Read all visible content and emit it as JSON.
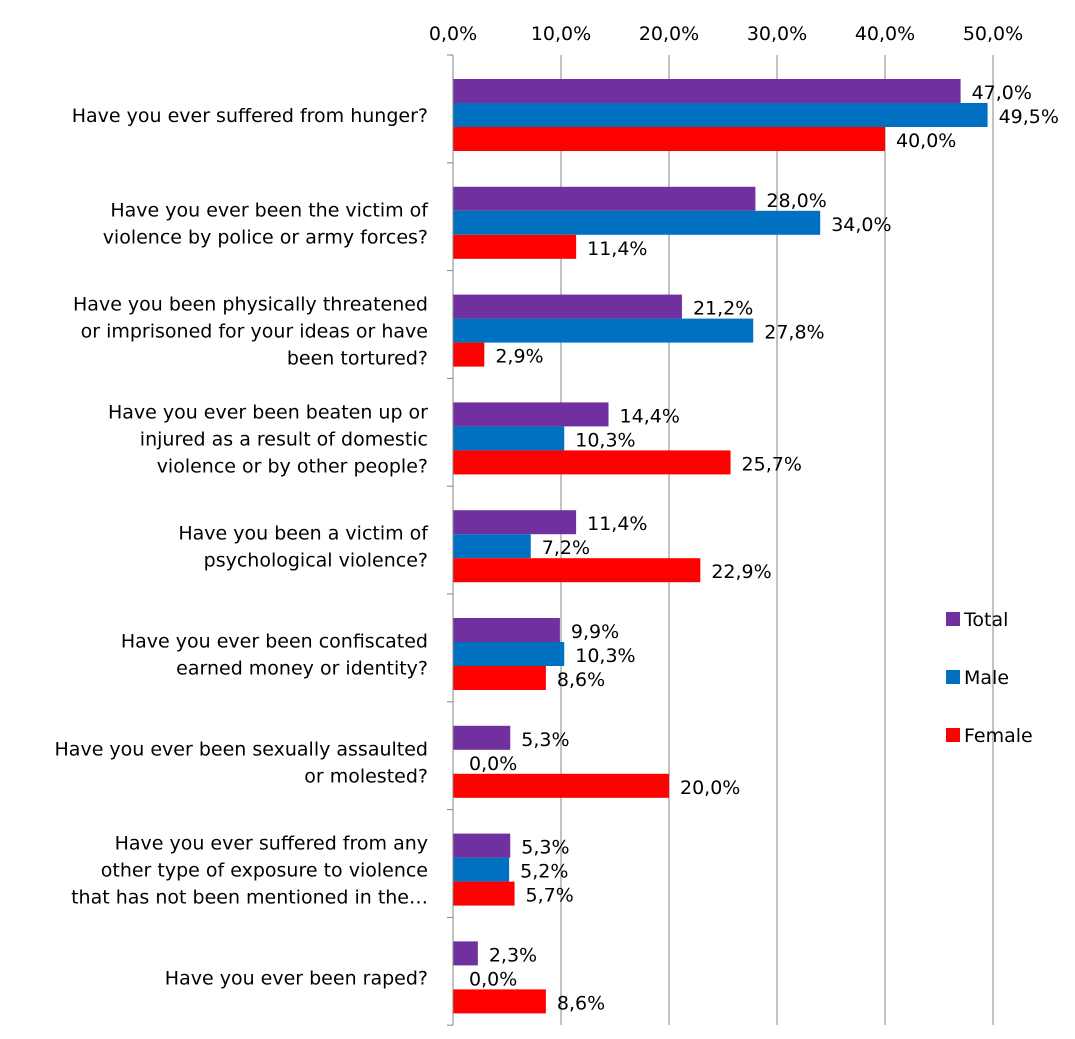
{
  "chart_data": {
    "type": "bar",
    "orientation": "horizontal",
    "title": "",
    "xlabel": "",
    "ylabel": "",
    "xlim": [
      0,
      50
    ],
    "grid": true,
    "axis_position": "top",
    "legend_position": "right",
    "tick_labels": [
      "0,0%",
      "10,0%",
      "20,0%",
      "30,0%",
      "40,0%",
      "50,0%"
    ],
    "categories": [
      [
        "Have you ever suffered from hunger?"
      ],
      [
        "Have you ever been the victim of",
        "violence by police or army forces?"
      ],
      [
        "Have you been physically threatened",
        "or imprisoned for your ideas or have",
        "been tortured?"
      ],
      [
        "Have you ever been beaten up or",
        "injured as a result of domestic",
        "violence or by other people?"
      ],
      [
        "Have you been a victim of",
        "psychological violence?"
      ],
      [
        "Have you ever been confiscated",
        "earned money or identity?"
      ],
      [
        "Have you ever been sexually assaulted",
        "or molested?"
      ],
      [
        "Have you ever suffered from any",
        "other type of exposure to violence",
        "that has not been mentioned in the…"
      ],
      [
        "Have you ever been raped?"
      ]
    ],
    "series": [
      {
        "name": "Total",
        "color": "#7030A0",
        "values": [
          47.0,
          28.0,
          21.2,
          14.4,
          11.4,
          9.9,
          5.3,
          5.3,
          2.3
        ],
        "labels": [
          "47,0%",
          "28,0%",
          "21,2%",
          "14,4%",
          "11,4%",
          "9,9%",
          "5,3%",
          "5,3%",
          "2,3%"
        ]
      },
      {
        "name": "Male",
        "color": "#0070C0",
        "values": [
          49.5,
          34.0,
          27.8,
          10.3,
          7.2,
          10.3,
          0.0,
          5.2,
          0.0
        ],
        "labels": [
          "49,5%",
          "34,0%",
          "27,8%",
          "10,3%",
          "7,2%",
          "10,3%",
          "0,0%",
          "5,2%",
          "0,0%"
        ]
      },
      {
        "name": "Female",
        "color": "#FF0000",
        "values": [
          40.0,
          11.4,
          2.9,
          25.7,
          22.9,
          8.6,
          20.0,
          5.7,
          8.6
        ],
        "labels": [
          "40,0%",
          "11,4%",
          "2,9%",
          "25,7%",
          "22,9%",
          "8,6%",
          "20,0%",
          "5,7%",
          "8,6%"
        ]
      }
    ]
  }
}
